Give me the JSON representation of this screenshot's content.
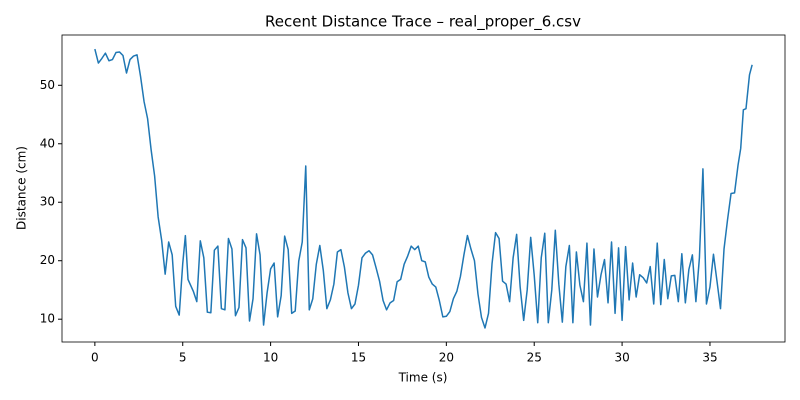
{
  "chart_data": {
    "type": "line",
    "title": "Recent Distance Trace – real_proper_6.csv",
    "x_label": "Time (s)",
    "y_label": "Distance (cm)",
    "color": "#1f77b4",
    "xlim": [
      -1.87,
      39.27
    ],
    "ylim": [
      6.1,
      58.6
    ],
    "xticks": [
      0,
      5,
      10,
      15,
      20,
      25,
      30,
      35
    ],
    "yticks": [
      10,
      20,
      30,
      40,
      50
    ],
    "x": [
      0,
      0.2,
      0.4,
      0.6,
      0.8,
      1.0,
      1.2,
      1.4,
      1.6,
      1.8,
      2.0,
      2.2,
      2.4,
      2.6,
      2.8,
      3.0,
      3.2,
      3.4,
      3.6,
      3.8,
      4.0,
      4.2,
      4.4,
      4.6,
      4.8,
      5.0,
      5.15,
      5.3,
      5.6,
      5.8,
      6.0,
      6.2,
      6.4,
      6.6,
      6.8,
      7.0,
      7.2,
      7.4,
      7.6,
      7.8,
      8.0,
      8.2,
      8.4,
      8.6,
      8.8,
      9.0,
      9.2,
      9.4,
      9.6,
      9.8,
      10.0,
      10.2,
      10.4,
      10.6,
      10.8,
      11.0,
      11.2,
      11.4,
      11.6,
      11.8,
      12.0,
      12.2,
      12.4,
      12.6,
      12.8,
      13.0,
      13.2,
      13.4,
      13.6,
      13.8,
      14.0,
      14.2,
      14.4,
      14.6,
      14.8,
      15.0,
      15.2,
      15.4,
      15.6,
      15.8,
      16.0,
      16.2,
      16.4,
      16.6,
      16.8,
      17.0,
      17.2,
      17.4,
      17.6,
      17.8,
      18.0,
      18.2,
      18.4,
      18.6,
      18.8,
      19.0,
      19.2,
      19.4,
      19.6,
      19.8,
      20.0,
      20.2,
      20.4,
      20.6,
      20.8,
      21.0,
      21.2,
      21.4,
      21.6,
      21.8,
      22.0,
      22.2,
      22.4,
      22.6,
      22.8,
      23.0,
      23.2,
      23.4,
      23.6,
      23.8,
      24.0,
      24.2,
      24.4,
      24.6,
      24.8,
      25.0,
      25.2,
      25.4,
      25.6,
      25.8,
      26.0,
      26.2,
      26.4,
      26.6,
      26.8,
      27.0,
      27.2,
      27.4,
      27.6,
      27.8,
      28.0,
      28.2,
      28.4,
      28.6,
      28.8,
      29.0,
      29.2,
      29.4,
      29.6,
      29.8,
      30.0,
      30.2,
      30.4,
      30.6,
      30.8,
      31.0,
      31.2,
      31.4,
      31.6,
      31.8,
      32.0,
      32.2,
      32.4,
      32.6,
      32.8,
      33.0,
      33.2,
      33.4,
      33.6,
      33.8,
      34.0,
      34.2,
      34.4,
      34.6,
      34.8,
      35.0,
      35.2,
      35.4,
      35.6,
      35.8,
      36.0,
      36.2,
      36.4,
      36.6,
      36.75,
      36.9,
      37.05,
      37.25,
      37.4
    ],
    "values": [
      56.2,
      53.8,
      54.6,
      55.5,
      54.2,
      54.4,
      55.6,
      55.7,
      55.1,
      52.1,
      54.4,
      55,
      55.2,
      51.5,
      47.2,
      44.3,
      39,
      34.5,
      27.5,
      23.5,
      17.7,
      23.2,
      21,
      12.2,
      10.7,
      19.5,
      24.3,
      16.8,
      14.8,
      13,
      23.4,
      20.5,
      11.2,
      11.1,
      21.8,
      22.5,
      11.8,
      11.6,
      23.8,
      22,
      10.6,
      12,
      23.6,
      22.2,
      9.7,
      13.5,
      24.6,
      21,
      9.0,
      14.5,
      18.6,
      19.6,
      10.4,
      14,
      24.2,
      21.9,
      11,
      11.4,
      19.9,
      23.2,
      36.2,
      11.6,
      13.5,
      19.4,
      22.6,
      18.3,
      11.8,
      13.3,
      16,
      21.5,
      21.9,
      18.9,
      14.5,
      11.8,
      12.6,
      15.8,
      20.5,
      21.3,
      21.7,
      21,
      18.8,
      16.5,
      13.2,
      11.6,
      12.8,
      13.2,
      16.4,
      16.8,
      19.4,
      20.8,
      22.5,
      21.9,
      22.5,
      20,
      19.8,
      17.2,
      16,
      15.5,
      13.2,
      10.4,
      10.5,
      11.3,
      13.5,
      14.8,
      17.3,
      21,
      24.3,
      22,
      20,
      14.3,
      10.3,
      8.5,
      11,
      19.5,
      24.8,
      23.8,
      16.5,
      16,
      13,
      20.5,
      24.5,
      15.5,
      9.8,
      15,
      24,
      17.5,
      9.4,
      20.5,
      24.7,
      9.4,
      15,
      25.2,
      16,
      9.5,
      19,
      22.6,
      9.4,
      21.5,
      15.8,
      13,
      23,
      9,
      22,
      13.8,
      17.6,
      20.2,
      12.8,
      23.2,
      11,
      22.2,
      9.8,
      22.4,
      13.3,
      19.6,
      13.8,
      17.6,
      17.1,
      16.2,
      19,
      12.6,
      23,
      12.5,
      20.2,
      13.5,
      17.4,
      17.5,
      13,
      21.2,
      12.8,
      18.5,
      21,
      13,
      20.5,
      35.7,
      12.6,
      15.5,
      21.1,
      16.5,
      11.8,
      22,
      27,
      31.5,
      31.6,
      36.4,
      39.2,
      45.8,
      46,
      51.8,
      53.5
    ]
  }
}
